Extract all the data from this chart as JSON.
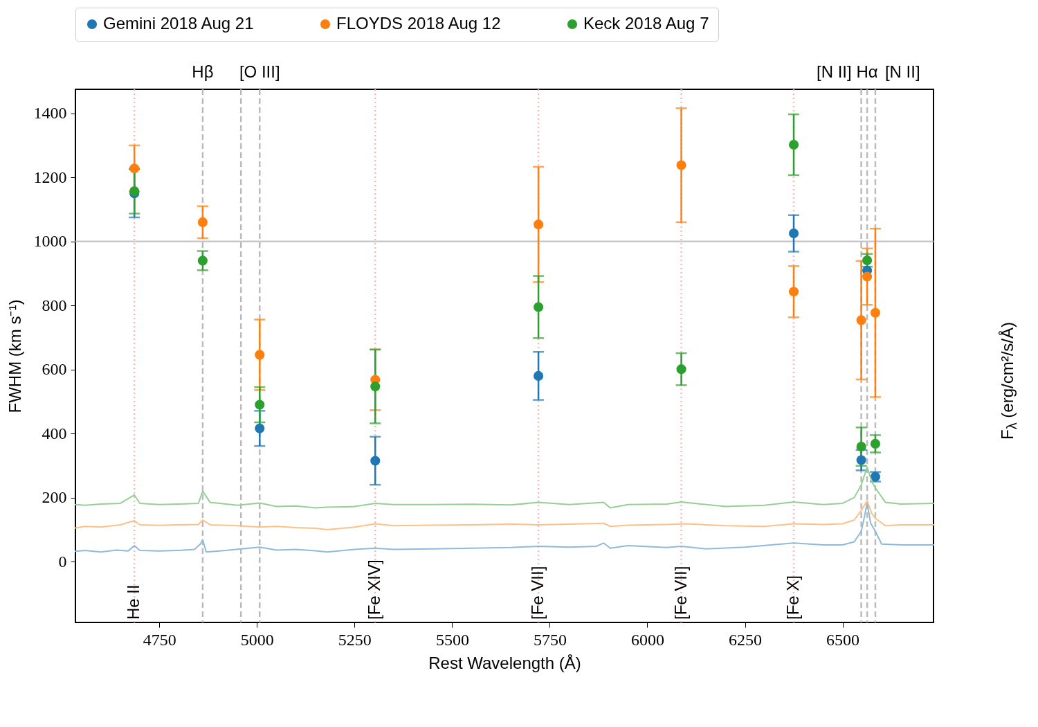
{
  "chart_data": {
    "type": "scatter",
    "xlabel": "Rest Wavelength (Å)",
    "ylabel": "FWHM (km s⁻¹)",
    "y2label": "F$_{λ}$ (erg/cm²/s/Å)",
    "xlim": [
      4535,
      6733
    ],
    "xticks": [
      4750,
      5000,
      5250,
      5500,
      5750,
      6000,
      6250,
      6500
    ],
    "ylim": [
      -190,
      1475
    ],
    "yticks": [
      0,
      200,
      400,
      600,
      800,
      1000,
      1200,
      1400
    ],
    "legend": "top",
    "marker": "circle",
    "grid": false,
    "series": [
      {
        "name": "Gemini 2018 Aug 21",
        "color": "#1f77b4",
        "x": [
          4686,
          5007,
          5303,
          5721,
          6375,
          6548,
          6563,
          6584
        ],
        "values": [
          1150,
          416,
          315,
          580,
          1025,
          317,
          909,
          265
        ],
        "errors": [
          75,
          55,
          75,
          75,
          57,
          32,
          null,
          15
        ]
      },
      {
        "name": "FLOYDS 2018 Aug 12",
        "color": "#ff7f0e",
        "x": [
          4686,
          4861,
          5007,
          5303,
          5721,
          6087,
          6375,
          6548,
          6563,
          6584
        ],
        "values": [
          1228,
          1060,
          646,
          568,
          1053,
          1238,
          843,
          754,
          890,
          777
        ],
        "errors": [
          72,
          50,
          110,
          95,
          180,
          178,
          80,
          185,
          88,
          263
        ]
      },
      {
        "name": "Keck 2018 Aug 7",
        "color": "#2ca02c",
        "x": [
          4686,
          4861,
          5007,
          5303,
          5721,
          6087,
          6375,
          6548,
          6563,
          6584
        ],
        "values": [
          1157,
          940,
          490,
          547,
          795,
          601,
          1302,
          359,
          941,
          368
        ],
        "errors": [
          70,
          30,
          55,
          115,
          97,
          50,
          95,
          60,
          20,
          27
        ]
      },
      {
        "type": "line",
        "marker": "none",
        "color": "#8fbbd9",
        "x": [
          4535,
          4560,
          4600,
          4640,
          4670,
          4686,
          4700,
          4750,
          4800,
          4840,
          4855,
          4861,
          4870,
          4920,
          4960,
          5007,
          5050,
          5100,
          5150,
          5180,
          5250,
          5303,
          5350,
          5450,
          5550,
          5650,
          5721,
          5800,
          5870,
          5888,
          5905,
          5950,
          6050,
          6087,
          6150,
          6250,
          6375,
          6450,
          6500,
          6530,
          6548,
          6556,
          6563,
          6572,
          6584,
          6600,
          6650,
          6733
        ],
        "values": [
          32,
          35,
          30,
          36,
          33,
          50,
          35,
          33,
          35,
          38,
          55,
          68,
          30,
          35,
          40,
          45,
          36,
          38,
          34,
          30,
          38,
          42,
          38,
          40,
          42,
          44,
          48,
          45,
          48,
          58,
          42,
          50,
          44,
          48,
          40,
          45,
          58,
          52,
          52,
          62,
          95,
          140,
          183,
          120,
          95,
          55,
          52,
          52
        ]
      },
      {
        "type": "line",
        "marker": "none",
        "color": "#ffbf86",
        "x": [
          4535,
          4560,
          4600,
          4650,
          4686,
          4700,
          4750,
          4800,
          4850,
          4861,
          4880,
          4950,
          5007,
          5050,
          5100,
          5150,
          5180,
          5250,
          5303,
          5350,
          5450,
          5550,
          5650,
          5721,
          5800,
          5888,
          5905,
          5950,
          6050,
          6100,
          6200,
          6300,
          6375,
          6450,
          6500,
          6530,
          6548,
          6563,
          6575,
          6584,
          6610,
          6650,
          6733
        ],
        "values": [
          105,
          110,
          108,
          115,
          128,
          115,
          113,
          115,
          116,
          130,
          115,
          112,
          108,
          110,
          106,
          104,
          100,
          108,
          118,
          112,
          114,
          115,
          117,
          115,
          117,
          120,
          110,
          114,
          116,
          118,
          112,
          110,
          118,
          116,
          118,
          130,
          160,
          190,
          150,
          135,
          112,
          115,
          115
        ]
      },
      {
        "type": "line",
        "marker": "none",
        "color": "#95cf95",
        "x": [
          4535,
          4560,
          4600,
          4650,
          4686,
          4700,
          4750,
          4800,
          4850,
          4861,
          4880,
          4950,
          5007,
          5050,
          5100,
          5150,
          5180,
          5250,
          5303,
          5350,
          5450,
          5550,
          5650,
          5721,
          5800,
          5888,
          5905,
          5950,
          6050,
          6087,
          6200,
          6300,
          6375,
          6450,
          6500,
          6530,
          6548,
          6563,
          6575,
          6584,
          6610,
          6650,
          6733
        ],
        "values": [
          178,
          176,
          180,
          182,
          208,
          182,
          178,
          180,
          182,
          220,
          185,
          176,
          183,
          172,
          174,
          168,
          170,
          172,
          182,
          178,
          178,
          179,
          177,
          185,
          178,
          185,
          168,
          178,
          180,
          186,
          172,
          176,
          186,
          178,
          182,
          200,
          240,
          295,
          250,
          230,
          185,
          180,
          182
        ]
      }
    ],
    "ref_lines": [
      {
        "axis": "y",
        "value": 1000,
        "color": "#c8c8c8",
        "line_style": "solid"
      },
      {
        "axis": "x",
        "value": 4686,
        "label": "He II",
        "color": "#ffb6b6",
        "line_style": "dotted"
      },
      {
        "axis": "x",
        "value": 4861,
        "label": "Hβ",
        "color": "#bbbbbb",
        "line_style": "dashed"
      },
      {
        "axis": "x",
        "value": 4959,
        "color": "#bbbbbb",
        "line_style": "dashed"
      },
      {
        "axis": "x",
        "value": 5007,
        "label": "[O III]",
        "color": "#bbbbbb",
        "line_style": "dashed"
      },
      {
        "axis": "x",
        "value": 5303,
        "label": "[Fe XIV]",
        "color": "#ffb6b6",
        "line_style": "dotted"
      },
      {
        "axis": "x",
        "value": 5721,
        "label": "[Fe VII]",
        "color": "#ffb6b6",
        "line_style": "dotted"
      },
      {
        "axis": "x",
        "value": 6087,
        "label": "[Fe VII]",
        "color": "#ffb6b6",
        "line_style": "dotted"
      },
      {
        "axis": "x",
        "value": 6375,
        "label": "[Fe X]",
        "color": "#ffb6b6",
        "line_style": "dotted"
      },
      {
        "axis": "x",
        "value": 6548,
        "label": "[N II]",
        "color": "#bbbbbb",
        "line_style": "dashed"
      },
      {
        "axis": "x",
        "value": 6563,
        "label": "Hα",
        "color": "#bbbbbb",
        "line_style": "dashed"
      },
      {
        "axis": "x",
        "value": 6584,
        "label": "[N II]",
        "color": "#bbbbbb",
        "line_style": "dashed"
      }
    ]
  }
}
